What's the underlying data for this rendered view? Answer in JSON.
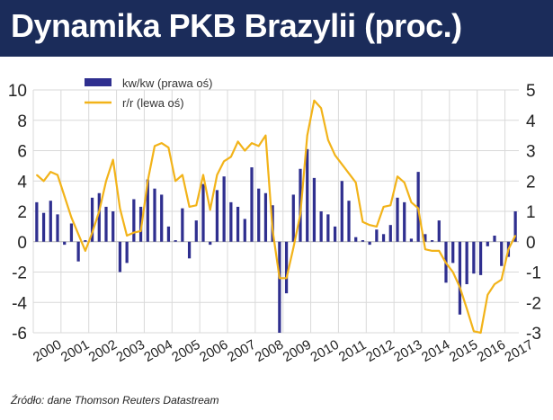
{
  "header": {
    "title": "Dynamika PKB Brazylii (proc.)"
  },
  "footer": {
    "source": "Źródło: dane Thomson Reuters Datastream"
  },
  "colors": {
    "header_bg": "#1b2c5a",
    "bar": "#2f2f8f",
    "line": "#f2b319",
    "grid": "#d9d9d9"
  },
  "chart_data": {
    "type": "bar",
    "title": "Dynamika PKB Brazylii (proc.)",
    "x_ticks": [
      "2000",
      "2001",
      "2002",
      "2003",
      "2004",
      "2005",
      "2006",
      "2007",
      "2008",
      "2009",
      "2010",
      "2011",
      "2012",
      "2013",
      "2014",
      "2015",
      "2016",
      "2017"
    ],
    "legend": {
      "placement": "top-left",
      "entries": [
        "kw/kw (prawa oś)",
        "r/r (lewa oś)"
      ]
    },
    "y_left": {
      "ylim": [
        -6,
        10
      ],
      "ticks": [
        "-6",
        "-4",
        "-2",
        "0",
        "2",
        "4",
        "6",
        "8",
        "10"
      ]
    },
    "y_right": {
      "ylim": [
        -3,
        5
      ],
      "ticks": [
        "-3",
        "-2",
        "-1",
        "0",
        "1",
        "2",
        "3",
        "4",
        "5"
      ]
    },
    "grid": true,
    "series": [
      {
        "name": "kw/kw (prawa oś)",
        "kind": "bar",
        "axis": "right",
        "color": "#2f2f8f",
        "quarters": [
          "2000Q1",
          "2000Q2",
          "2000Q3",
          "2000Q4",
          "2001Q1",
          "2001Q2",
          "2001Q3",
          "2001Q4",
          "2002Q1",
          "2002Q2",
          "2002Q3",
          "2002Q4",
          "2003Q1",
          "2003Q2",
          "2003Q3",
          "2003Q4",
          "2004Q1",
          "2004Q2",
          "2004Q3",
          "2004Q4",
          "2005Q1",
          "2005Q2",
          "2005Q3",
          "2005Q4",
          "2006Q1",
          "2006Q2",
          "2006Q3",
          "2006Q4",
          "2007Q1",
          "2007Q2",
          "2007Q3",
          "2007Q4",
          "2008Q1",
          "2008Q2",
          "2008Q3",
          "2008Q4",
          "2009Q1",
          "2009Q2",
          "2009Q3",
          "2009Q4",
          "2010Q1",
          "2010Q2",
          "2010Q3",
          "2010Q4",
          "2011Q1",
          "2011Q2",
          "2011Q3",
          "2011Q4",
          "2012Q1",
          "2012Q2",
          "2012Q3",
          "2012Q4",
          "2013Q1",
          "2013Q2",
          "2013Q3",
          "2013Q4",
          "2014Q1",
          "2014Q2",
          "2014Q3",
          "2014Q4",
          "2015Q1",
          "2015Q2",
          "2015Q3",
          "2015Q4",
          "2016Q1",
          "2016Q2",
          "2016Q3",
          "2016Q4",
          "2017Q1",
          "2017Q2"
        ],
        "values": [
          1.3,
          0.95,
          1.35,
          0.9,
          -0.1,
          0.6,
          -0.65,
          0.05,
          1.45,
          1.6,
          1.15,
          1.0,
          -1.0,
          -0.7,
          1.4,
          1.15,
          2.05,
          1.75,
          1.55,
          0.5,
          0.05,
          1.1,
          -0.55,
          0.7,
          1.9,
          -0.1,
          1.7,
          2.15,
          1.3,
          1.15,
          0.75,
          2.45,
          1.75,
          1.6,
          1.2,
          -3.0,
          -1.7,
          1.55,
          2.4,
          3.05,
          2.1,
          1.0,
          0.9,
          0.5,
          2.0,
          1.35,
          0.15,
          0.05,
          -0.1,
          0.4,
          0.25,
          0.55,
          1.45,
          1.3,
          0.1,
          2.3,
          0.25,
          0.05,
          0.7,
          -1.35,
          -0.7,
          -2.4,
          -1.4,
          -1.05,
          -1.1,
          -0.15,
          0.2,
          -0.8,
          -0.5,
          1.0
        ]
      },
      {
        "name": "r/r (lewa oś)",
        "kind": "line",
        "axis": "left",
        "color": "#f2b319",
        "values": [
          4.4,
          4.0,
          4.6,
          4.4,
          3.0,
          1.6,
          0.5,
          -0.6,
          0.6,
          2.0,
          4.0,
          5.4,
          2.2,
          0.4,
          0.6,
          0.7,
          4.0,
          6.3,
          6.5,
          6.2,
          4.0,
          4.4,
          2.3,
          2.4,
          4.4,
          2.1,
          4.4,
          5.3,
          5.6,
          6.6,
          6.0,
          6.5,
          6.3,
          7.0,
          0.8,
          -2.4,
          -2.4,
          -0.4,
          1.8,
          7.0,
          9.3,
          8.8,
          6.7,
          5.7,
          5.1,
          4.5,
          3.9,
          1.3,
          1.1,
          1.0,
          2.3,
          2.4,
          4.3,
          3.9,
          2.6,
          2.2,
          -0.5,
          -0.6,
          -0.6,
          -1.4,
          -2.0,
          -3.0,
          -4.4,
          -5.9,
          -6.0,
          -3.5,
          -2.8,
          -2.5,
          -0.5,
          0.4
        ]
      }
    ]
  }
}
